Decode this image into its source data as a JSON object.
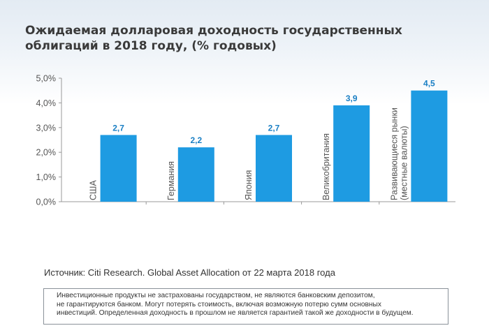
{
  "title": "Ожидаемая долларовая доходность государственных\nоблигаций в 2018 году, (% годовых)",
  "source": "Источник: Citi Research. Global Asset Allocation от 22 марта 2018 года",
  "disclaimer": "Инвестиционные продукты не застрахованы государством, не являются банковским депозитом,\nне гарантируются банком. Могут потерять стоимость, включая возможную потерю сумм основных\nинвестиций. Определенная доходность в прошлом не является гарантией такой же доходности в будущем.",
  "colors": {
    "bar": "#1e9be2",
    "data_label": "#1a7fc4",
    "axis": "#999999"
  },
  "chart_data": {
    "type": "bar",
    "title": "Ожидаемая долларовая доходность государственных облигаций в 2018 году, (% годовых)",
    "categories": [
      [
        "США"
      ],
      [
        "Германия"
      ],
      [
        "Япония"
      ],
      [
        "Великобритания"
      ],
      [
        "Развивающиеся рынки",
        "(местные валюты)"
      ]
    ],
    "values": [
      2.7,
      2.2,
      2.7,
      3.9,
      4.5
    ],
    "value_labels": [
      "2,7",
      "2,2",
      "2,7",
      "3,9",
      "4,5"
    ],
    "ylim": [
      0,
      5
    ],
    "yticks": [
      0,
      1,
      2,
      3,
      4,
      5
    ],
    "ytick_labels": [
      "0,0%",
      "1,0%",
      "2,0%",
      "3,0%",
      "4,0%",
      "5,0%"
    ],
    "grid": false,
    "legend": "none",
    "xlabel": "",
    "ylabel": ""
  }
}
